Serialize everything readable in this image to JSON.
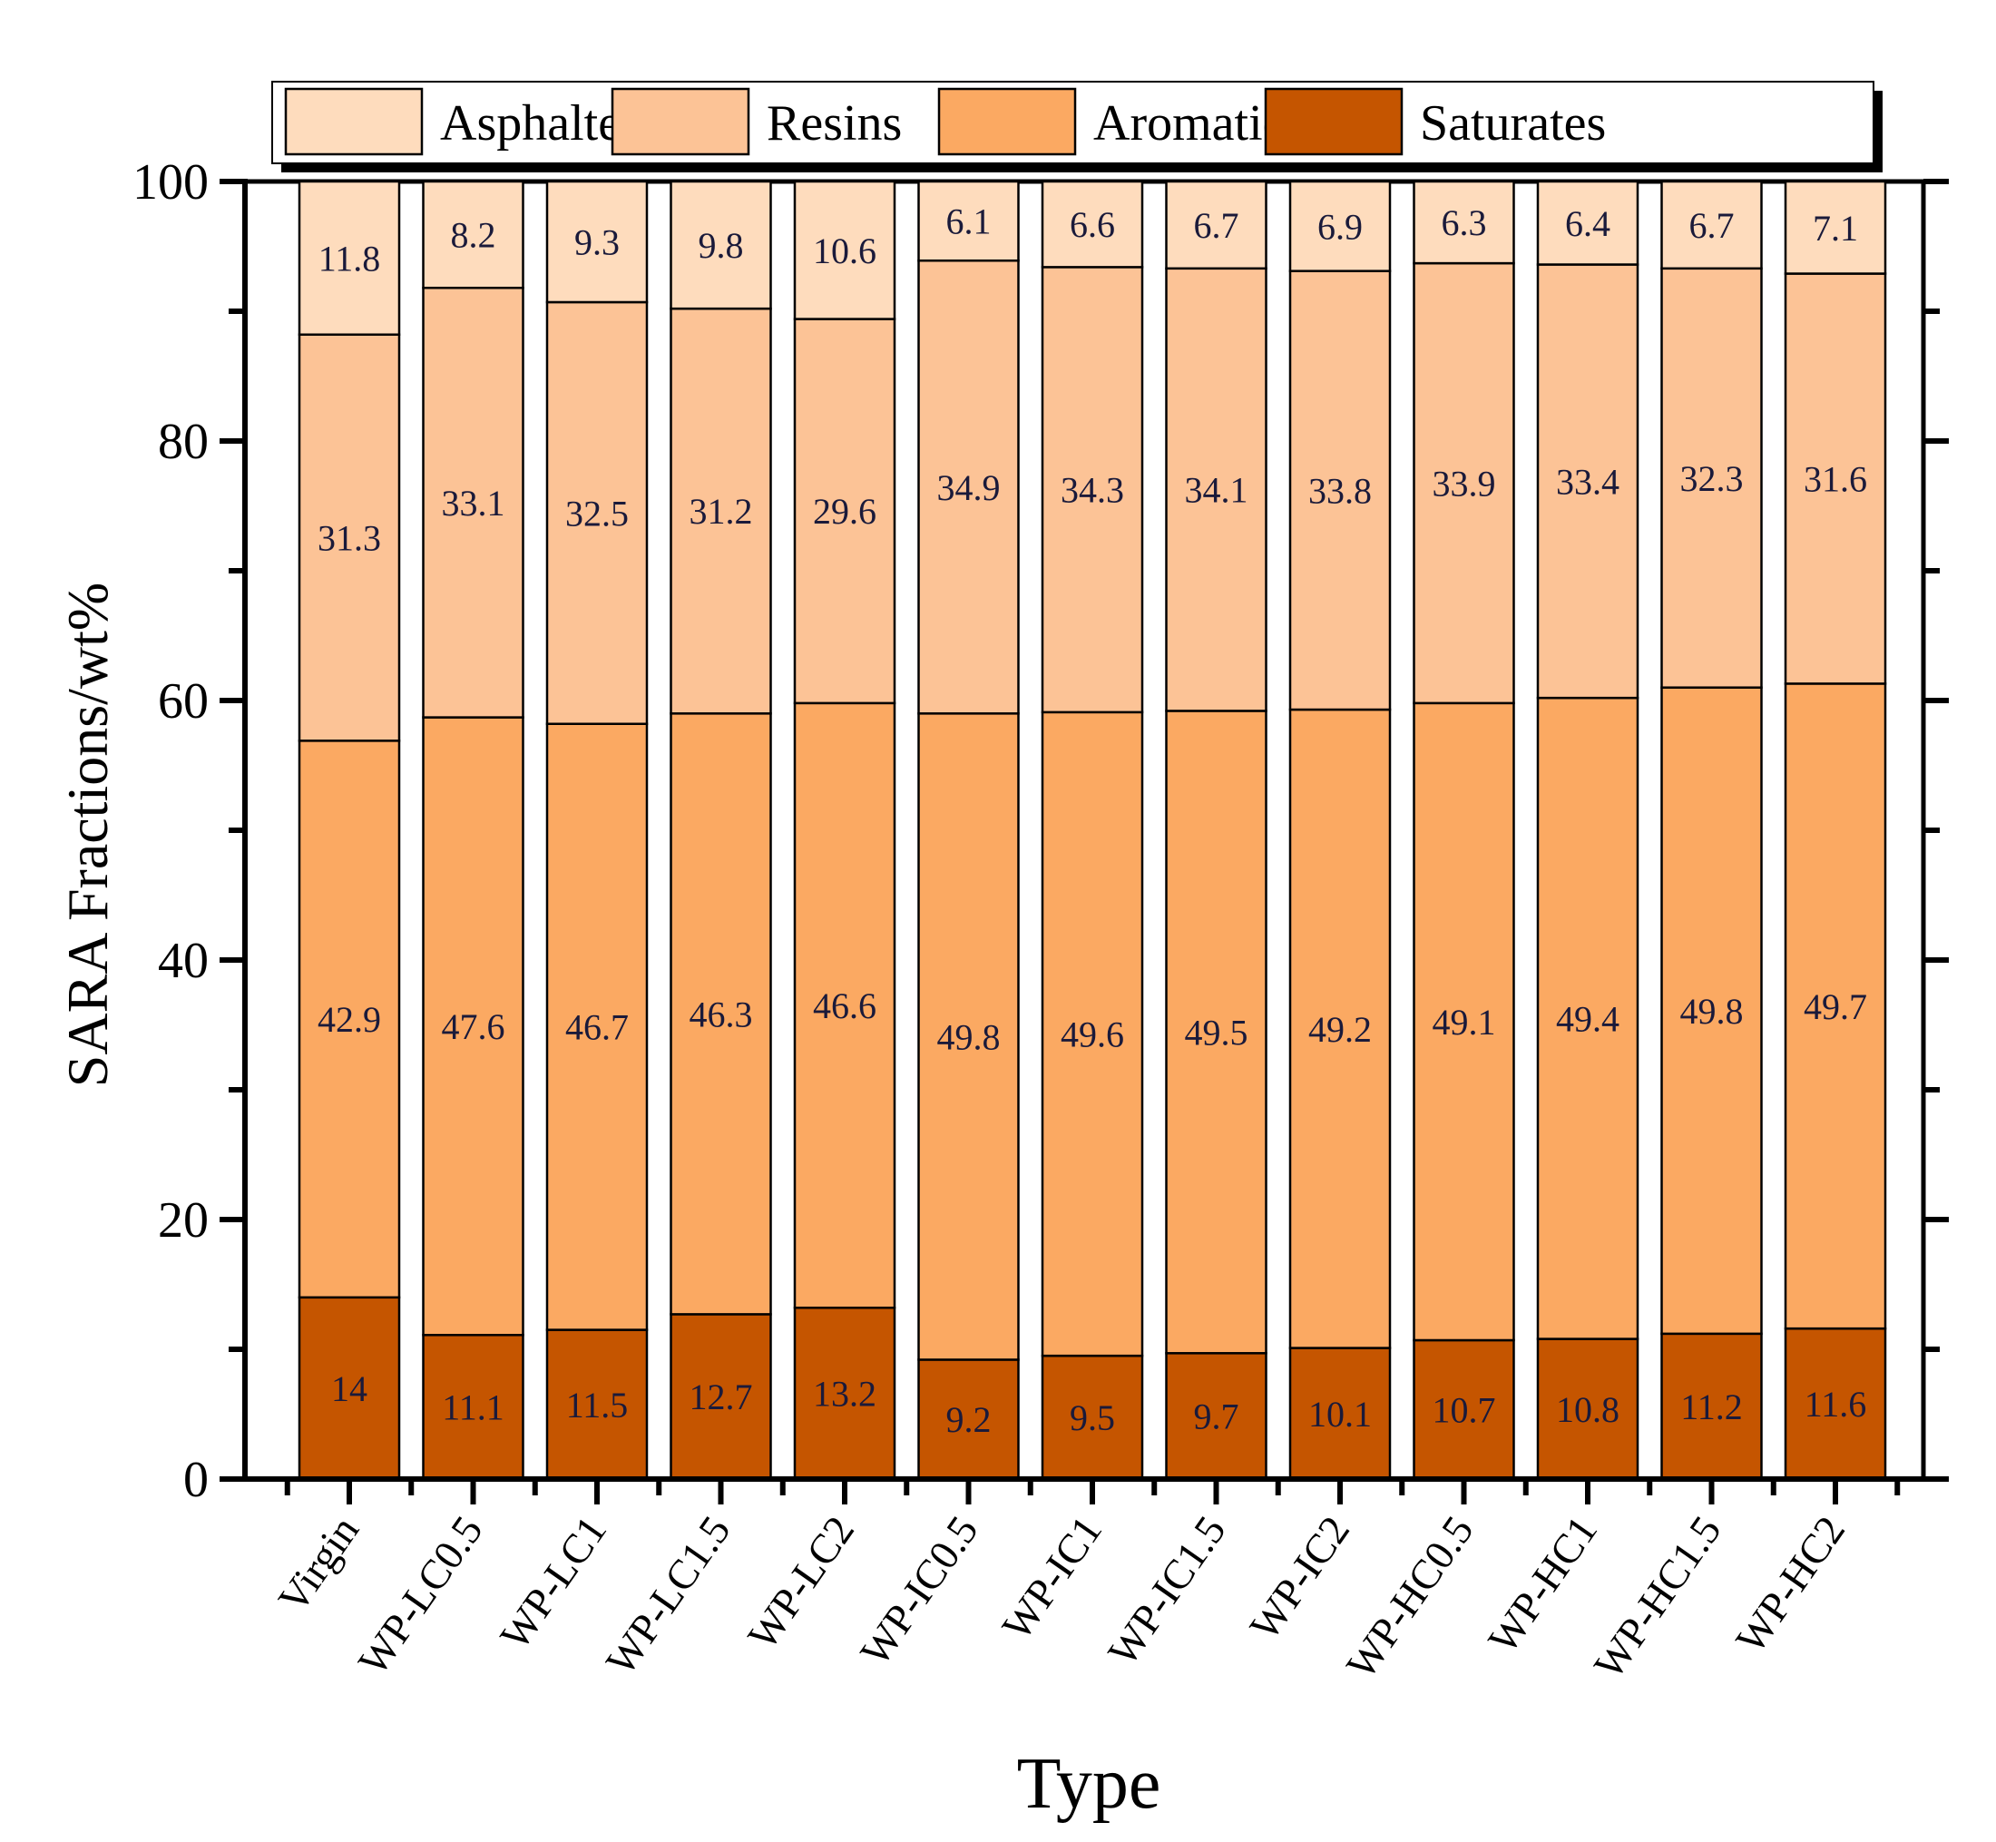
{
  "colors": {
    "Asphaltenes": "#fedcbd",
    "Resins": "#fcc396",
    "Aromatics": "#fba962",
    "Saturates": "#c55500"
  },
  "chart_data": {
    "type": "bar",
    "stacked": true,
    "title": "",
    "xlabel": "Type",
    "ylabel": "SARA Fractions/wt%",
    "ylim": [
      0,
      100
    ],
    "yticks": [
      0,
      20,
      40,
      60,
      80,
      100
    ],
    "legend_position": "top",
    "categories": [
      "Virgin",
      "WP-LC0.5",
      "WP-LC1",
      "WP-LC1.5",
      "WP-LC2",
      "WP-IC0.5",
      "WP-IC1",
      "WP-IC1.5",
      "WP-IC2",
      "WP-HC0.5",
      "WP-HC1",
      "WP-HC1.5",
      "WP-HC2"
    ],
    "series": [
      {
        "name": "Saturates",
        "labels": [
          "14",
          "11.1",
          "11.5",
          "12.7",
          "13.2",
          "9.2",
          "9.5",
          "9.7",
          "10.1",
          "10.7",
          "10.8",
          "11.2",
          "11.6"
        ],
        "values": [
          14,
          11.1,
          11.5,
          12.7,
          13.2,
          9.2,
          9.5,
          9.7,
          10.1,
          10.7,
          10.8,
          11.2,
          11.6
        ]
      },
      {
        "name": "Aromatics",
        "labels": [
          "42.9",
          "47.6",
          "46.7",
          "46.3",
          "46.6",
          "49.8",
          "49.6",
          "49.5",
          "49.2",
          "49.1",
          "49.4",
          "49.8",
          "49.7"
        ],
        "values": [
          42.9,
          47.6,
          46.7,
          46.3,
          46.6,
          49.8,
          49.6,
          49.5,
          49.2,
          49.1,
          49.4,
          49.8,
          49.7
        ]
      },
      {
        "name": "Resins",
        "labels": [
          "31.3",
          "33.1",
          "32.5",
          "31.2",
          "29.6",
          "34.9",
          "34.3",
          "34.1",
          "33.8",
          "33.9",
          "33.4",
          "32.3",
          "31.6"
        ],
        "values": [
          31.3,
          33.1,
          32.5,
          31.2,
          29.6,
          34.9,
          34.3,
          34.1,
          33.8,
          33.9,
          33.4,
          32.3,
          31.6
        ]
      },
      {
        "name": "Asphaltenes",
        "labels": [
          "11.8",
          "8.2",
          "9.3",
          "9.8",
          "10.6",
          "6.1",
          "6.6",
          "6.7",
          "6.9",
          "6.3",
          "6.4",
          "6.7",
          "7.1"
        ],
        "values": [
          11.8,
          8.2,
          9.3,
          9.8,
          10.6,
          6.1,
          6.6,
          6.7,
          6.9,
          6.3,
          6.4,
          6.7,
          7.1
        ]
      }
    ],
    "legend_order": [
      "Asphaltenes",
      "Resins",
      "Aromatics",
      "Saturates"
    ]
  }
}
